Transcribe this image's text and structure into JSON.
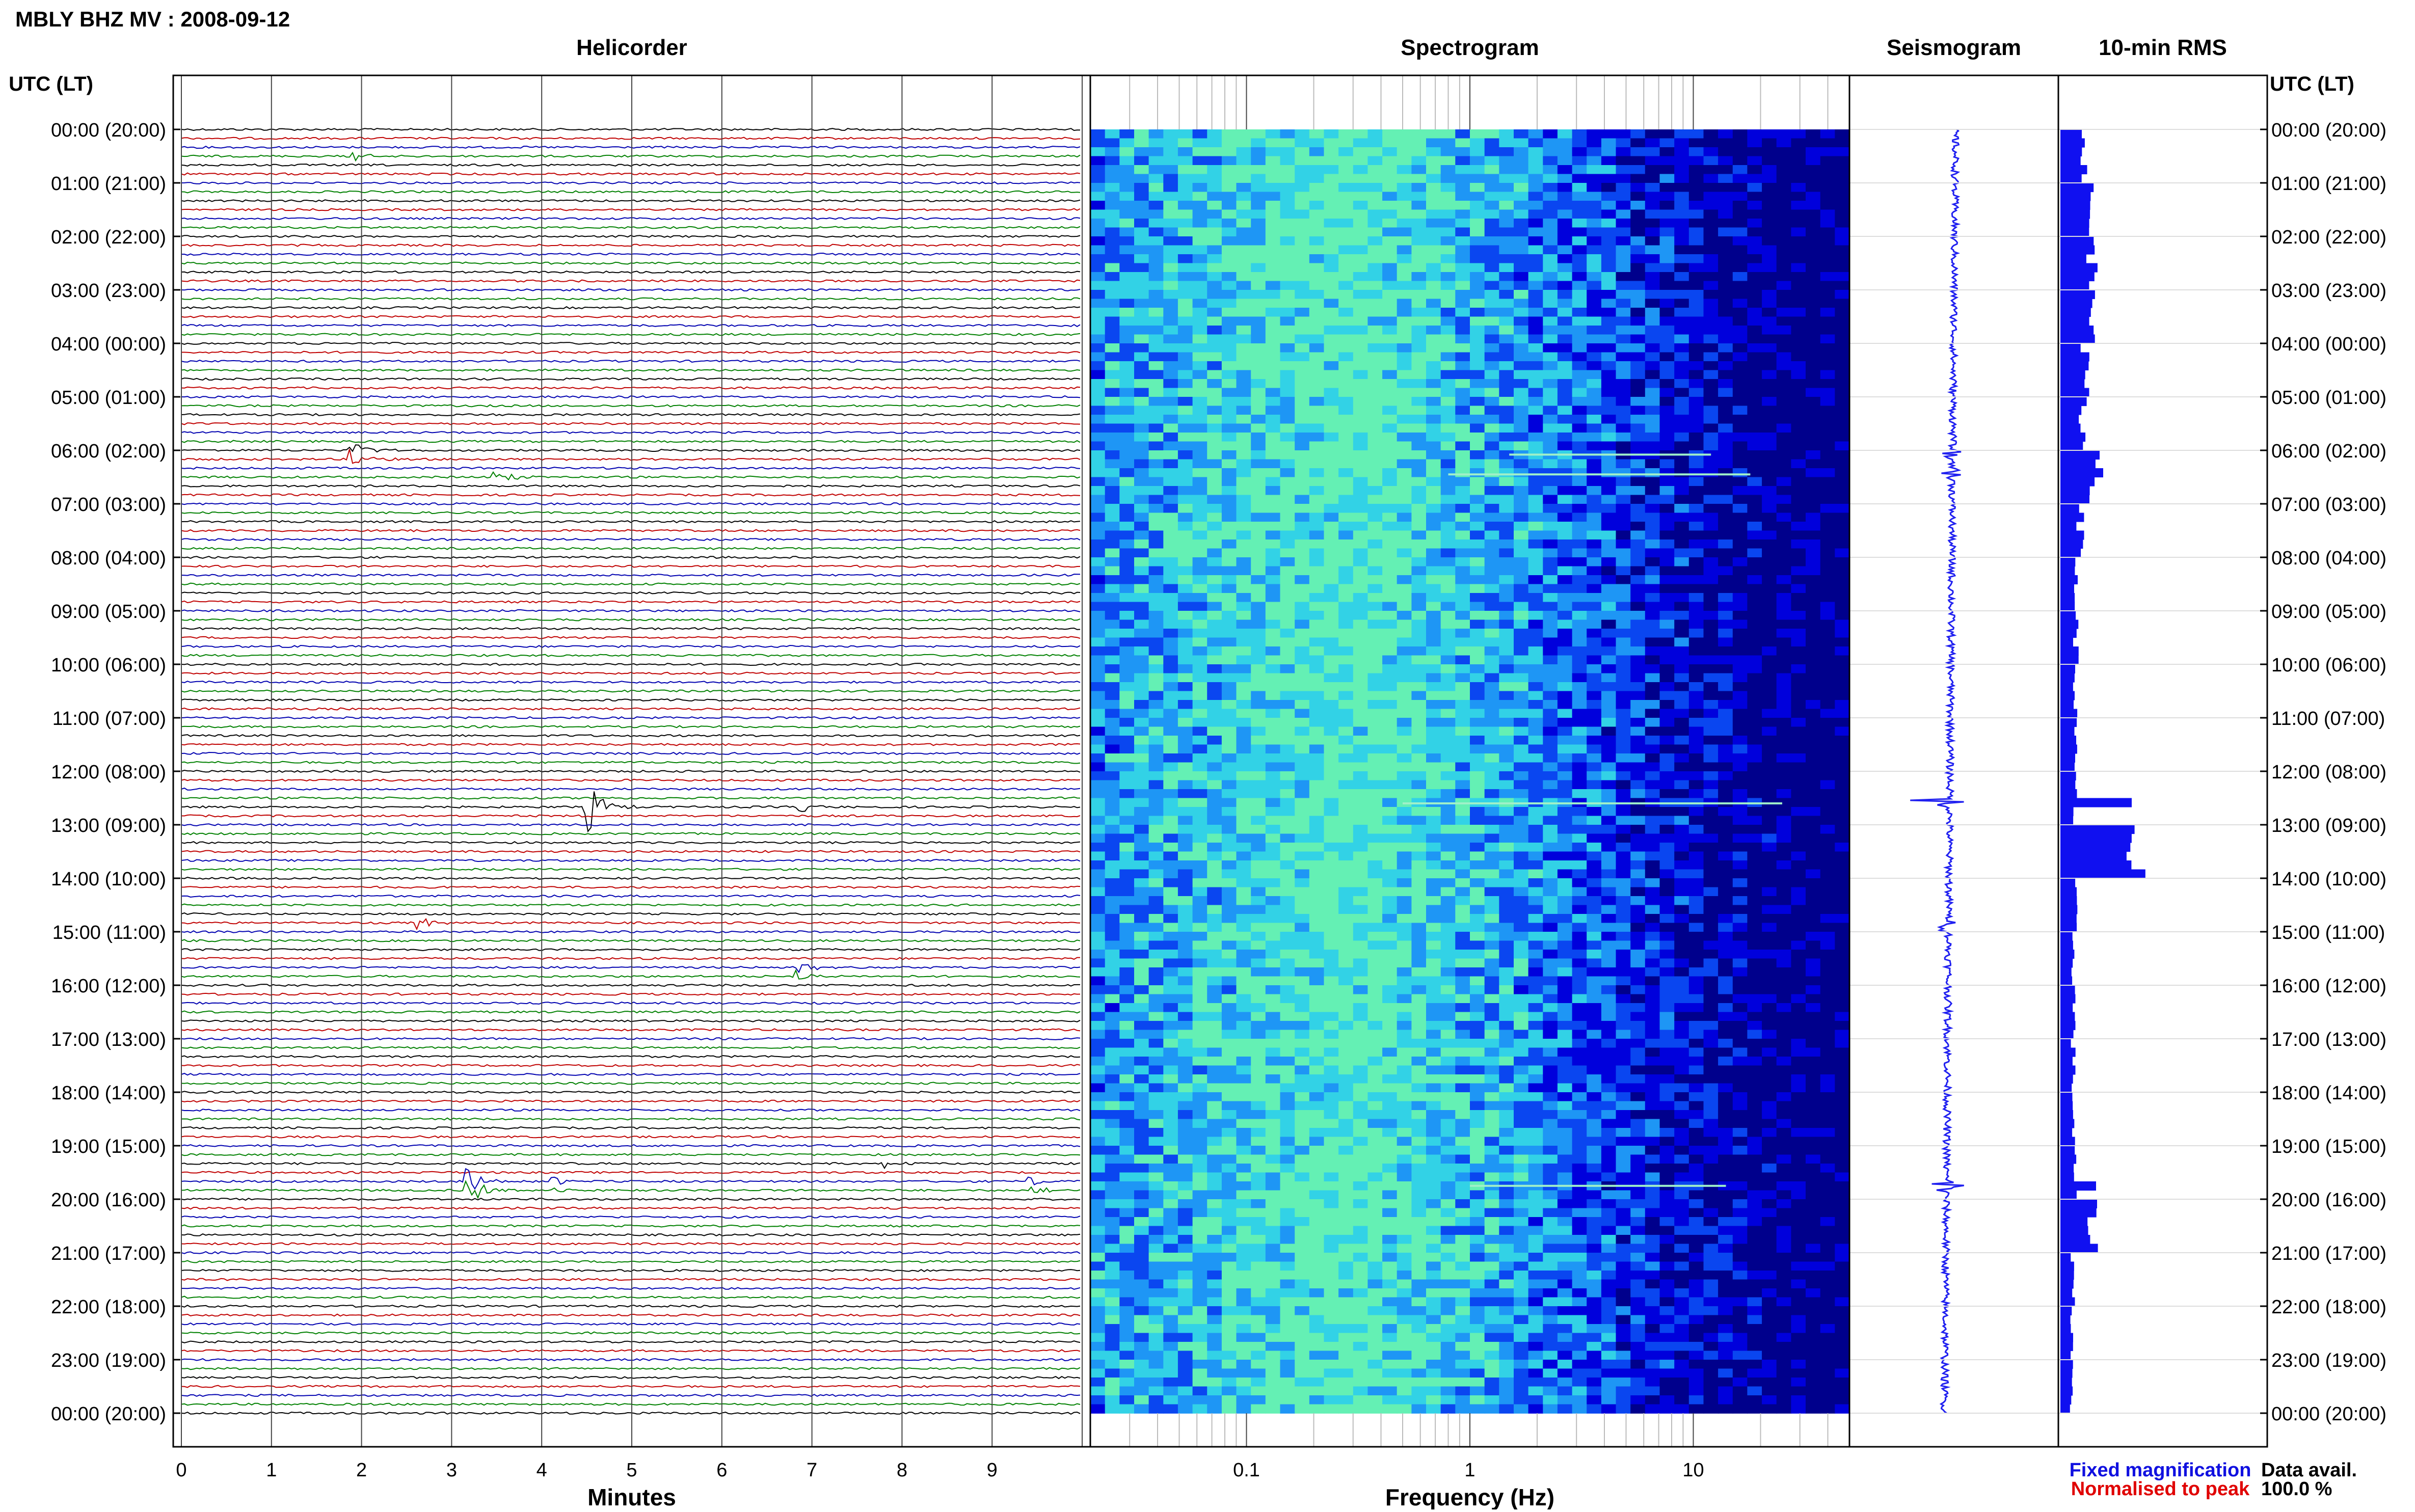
{
  "title": "MBLY BHZ MV : 2008-09-12",
  "headers": {
    "helicorder": "Helicorder",
    "spectrogram": "Spectrogram",
    "seismogram": "Seismogram",
    "rms": "10-min RMS",
    "utc_left": "UTC (LT)",
    "utc_right": "UTC (LT)"
  },
  "time_labels": [
    "00:00 (20:00)",
    "01:00 (21:00)",
    "02:00 (22:00)",
    "03:00 (23:00)",
    "04:00 (00:00)",
    "05:00 (01:00)",
    "06:00 (02:00)",
    "07:00 (03:00)",
    "08:00 (04:00)",
    "09:00 (05:00)",
    "10:00 (06:00)",
    "11:00 (07:00)",
    "12:00 (08:00)",
    "13:00 (09:00)",
    "14:00 (10:00)",
    "15:00 (11:00)",
    "16:00 (12:00)",
    "17:00 (13:00)",
    "18:00 (14:00)",
    "19:00 (15:00)",
    "20:00 (16:00)",
    "21:00 (17:00)",
    "22:00 (18:00)",
    "23:00 (19:00)",
    "00:00 (20:00)"
  ],
  "footer": {
    "minutes_label": "Minutes",
    "frequency_label": "Frequency (Hz)",
    "fixed_magnification": "Fixed magnification",
    "normalised_to_peak": "Normalised to peak",
    "data_avail_label": "Data avail.",
    "data_avail_value": "100.0 %"
  },
  "colors": {
    "trace_cycle": [
      "#000000",
      "#c00000",
      "#0000b0",
      "#008000"
    ],
    "fixed_magnification": "#1010e0",
    "normalised_to_peak": "#e00000",
    "rms_bar": "#1010f0",
    "seismogram": "#2020f0"
  },
  "chart_data": [
    {
      "type": "line",
      "name": "helicorder",
      "title": "Helicorder",
      "xlabel": "Minutes",
      "ylabel": "UTC (LT)",
      "xlim": [
        0,
        10
      ],
      "x_ticks": [
        "0",
        "1",
        "2",
        "3",
        "4",
        "5",
        "6",
        "7",
        "8",
        "9"
      ],
      "lines_per_hour": 6,
      "hours": 24,
      "events": [
        {
          "hour": 0.55,
          "minute": 1.95,
          "amplitude": 0.6
        },
        {
          "hour": 6.08,
          "minute": 1.9,
          "amplitude": 1.4
        },
        {
          "hour": 6.45,
          "minute": 3.5,
          "amplitude": 1.5
        },
        {
          "hour": 12.6,
          "minute": 4.5,
          "amplitude": 4.0
        },
        {
          "hour": 12.6,
          "minute": 6.9,
          "amplitude": 0.8
        },
        {
          "hour": 14.9,
          "minute": 2.65,
          "amplitude": 0.9
        },
        {
          "hour": 15.75,
          "minute": 6.85,
          "amplitude": 0.8
        },
        {
          "hour": 19.28,
          "minute": 7.85,
          "amplitude": 0.6
        },
        {
          "hour": 19.75,
          "minute": 3.2,
          "amplitude": 2.2
        },
        {
          "hour": 19.75,
          "minute": 4.15,
          "amplitude": 0.7
        },
        {
          "hour": 19.75,
          "minute": 9.45,
          "amplitude": 0.7
        }
      ]
    },
    {
      "type": "heatmap",
      "name": "spectrogram",
      "title": "Spectrogram",
      "xlabel": "Frequency (Hz)",
      "x_scale": "log",
      "xlim": [
        0.02,
        50
      ],
      "x_ticks": [
        0.1,
        1,
        10
      ],
      "peak_band_hz": [
        0.15,
        0.6
      ],
      "color_scale": [
        "#00008c",
        "#0000dc",
        "#0a46f0",
        "#1e96f5",
        "#32d2e6",
        "#64f0b4"
      ],
      "lines": [
        {
          "hour": 6.08,
          "from_hz": 1.5,
          "to_hz": 12
        },
        {
          "hour": 6.45,
          "from_hz": 0.8,
          "to_hz": 18
        },
        {
          "hour": 12.6,
          "from_hz": 0.5,
          "to_hz": 25
        },
        {
          "hour": 19.75,
          "from_hz": 1,
          "to_hz": 14
        }
      ]
    },
    {
      "type": "line",
      "name": "seismogram",
      "title": "Seismogram",
      "events": [
        {
          "hour": 6.08,
          "amplitude": 0.35
        },
        {
          "hour": 6.45,
          "amplitude": 0.3
        },
        {
          "hour": 12.6,
          "amplitude": 1.0
        },
        {
          "hour": 14.9,
          "amplitude": 0.2
        },
        {
          "hour": 19.75,
          "amplitude": 0.6
        }
      ]
    },
    {
      "type": "bar",
      "name": "rms",
      "title": "10-min RMS",
      "orientation": "horizontal",
      "hourly_values": [
        0.35,
        0.4,
        0.45,
        0.5,
        0.34,
        0.32,
        0.5,
        0.28,
        0.22,
        0.22,
        0.21,
        0.2,
        0.2,
        1.0,
        0.2,
        0.19,
        0.19,
        0.18,
        0.18,
        0.19,
        0.45,
        0.18,
        0.17,
        0.16
      ],
      "peak_bins": [
        {
          "hour": 6.1,
          "value": 0.55
        },
        {
          "hour": 6.45,
          "value": 0.6
        },
        {
          "hour": 12.6,
          "value": 1.0
        },
        {
          "hour": 19.75,
          "value": 0.5
        }
      ]
    }
  ]
}
